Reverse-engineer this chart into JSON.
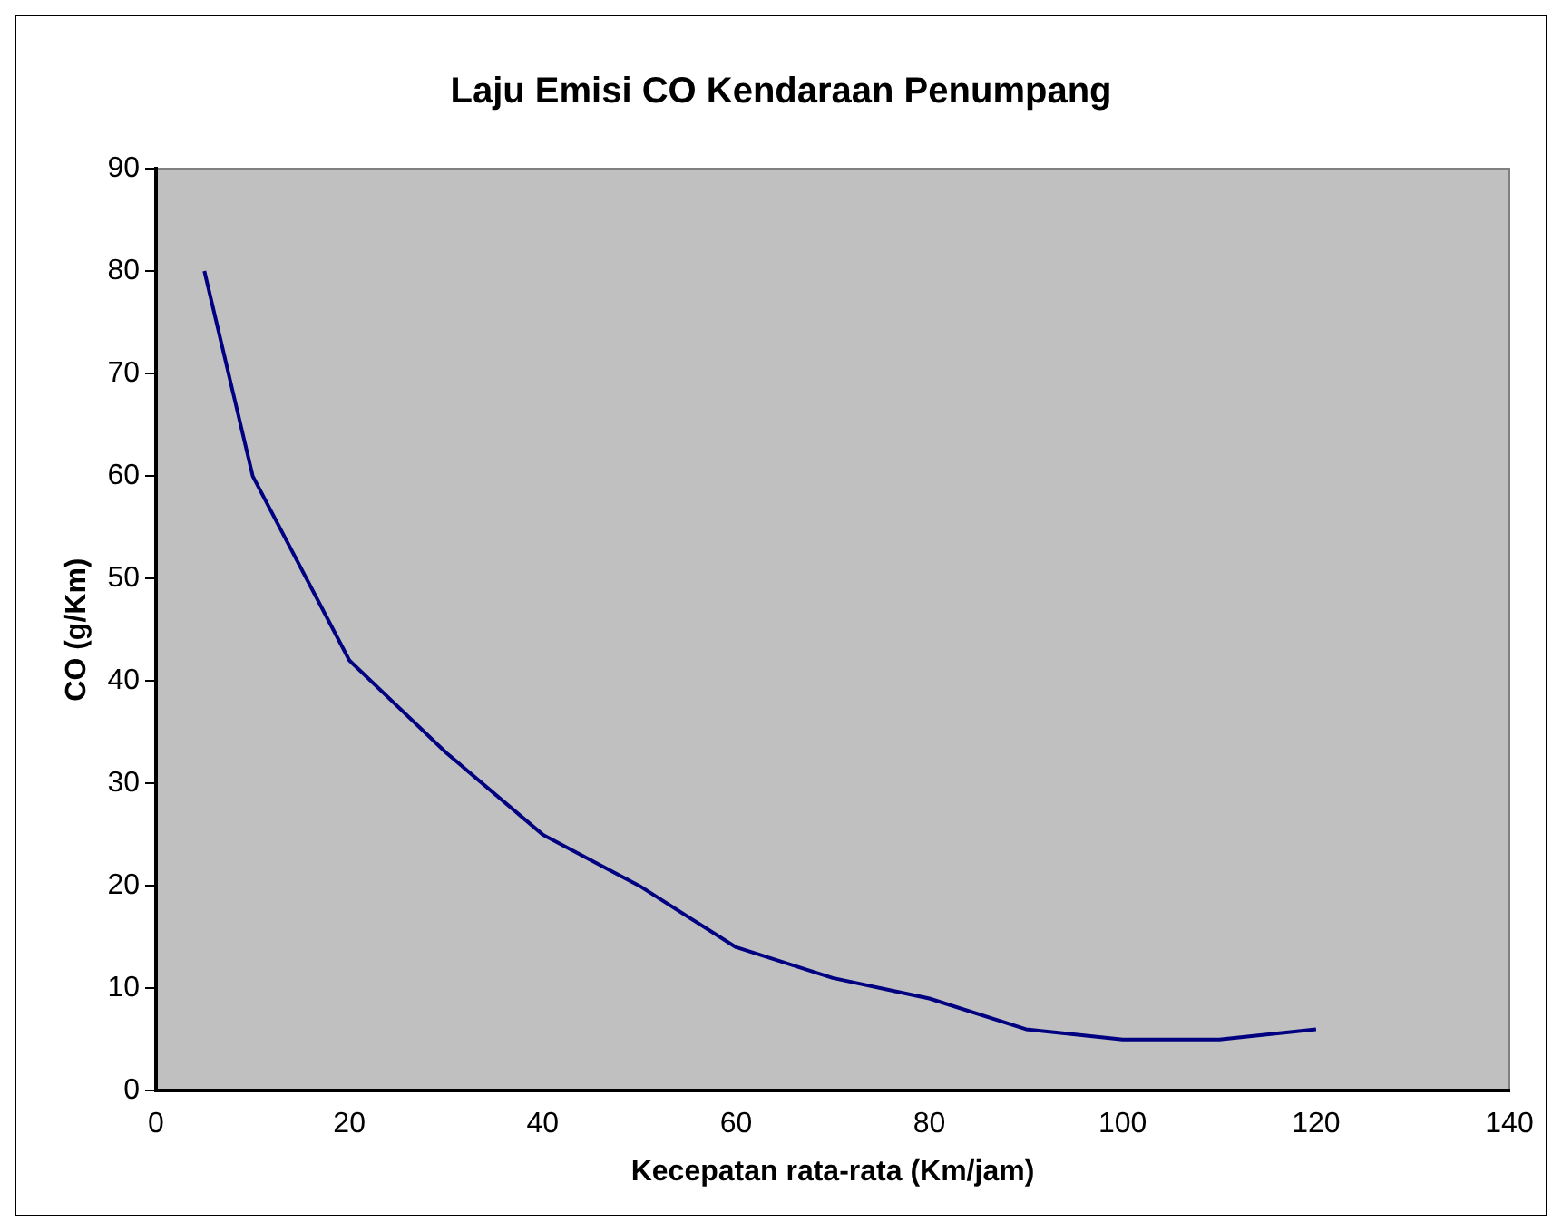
{
  "chart_data": {
    "type": "line",
    "title": "Laju Emisi CO Kendaraan Penumpang",
    "xlabel": "Kecepatan rata-rata (Km/jam)",
    "ylabel": "CO (g/Km)",
    "x": [
      5,
      10,
      20,
      30,
      40,
      50,
      60,
      70,
      80,
      90,
      100,
      110,
      120
    ],
    "series": [
      {
        "color": "#000080",
        "values": [
          80,
          60,
          42,
          33,
          25,
          20,
          14,
          11,
          9,
          6,
          5,
          5,
          6
        ]
      }
    ],
    "xlim": [
      0,
      140
    ],
    "xticks": [
      0,
      20,
      40,
      60,
      80,
      100,
      120,
      140
    ],
    "ylim": [
      0,
      90
    ],
    "yticks": [
      0,
      10,
      20,
      30,
      40,
      50,
      60,
      70,
      80,
      90
    ],
    "grid": false,
    "legend": false,
    "marker": "none",
    "line_style": "solid"
  }
}
